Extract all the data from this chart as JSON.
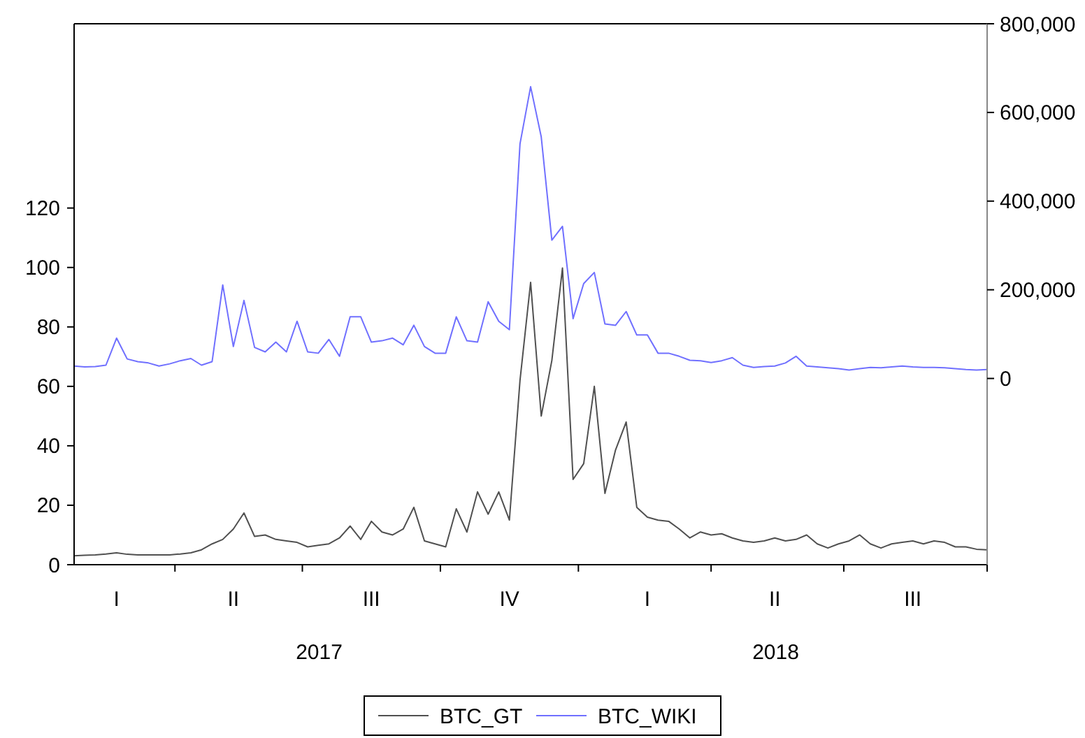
{
  "chart_data": {
    "type": "line",
    "categories": [
      null,
      null,
      null,
      null,
      "I",
      null,
      null,
      null,
      null,
      null,
      null,
      null,
      null,
      null,
      null,
      "II",
      null,
      null,
      null,
      null,
      null,
      null,
      null,
      null,
      null,
      null,
      null,
      null,
      "III",
      null,
      null,
      null,
      null,
      null,
      null,
      null,
      null,
      null,
      null,
      null,
      null,
      "IV",
      null,
      null,
      null,
      null,
      null,
      null,
      null,
      null,
      null,
      null,
      null,
      null,
      "I",
      null,
      null,
      null,
      null,
      null,
      null,
      null,
      null,
      null,
      null,
      null,
      "II",
      null,
      null,
      null,
      null,
      null,
      null,
      null,
      null,
      null,
      null,
      null,
      null,
      "III",
      null,
      null,
      null,
      null,
      null,
      null,
      null
    ],
    "ylim": [
      0,
      182
    ],
    "yticks": [
      0,
      20,
      40,
      60,
      80,
      100,
      120
    ],
    "y2lim": [
      -420000,
      800000
    ],
    "y2ticks": [
      0,
      {
        "value": 200000,
        "label": "200,000"
      },
      {
        "value": 400000,
        "label": "400,000"
      },
      {
        "value": 600000,
        "label": "600,000"
      },
      {
        "value": 800000,
        "label": "800,000"
      }
    ],
    "annotations": [
      "2017",
      "2018"
    ],
    "grid": false,
    "legend": "bottom",
    "line_style": "solid",
    "marker": "none",
    "series": [
      {
        "name": "BTC_GT",
        "color": "#505050",
        "values": [
          3,
          3.2,
          3.3,
          3.6,
          4,
          3.5,
          3.3,
          3.3,
          3.3,
          3.3,
          3.6,
          4,
          5,
          7,
          8.5,
          12,
          17.4,
          9.5,
          10,
          8.5,
          8,
          7.5,
          6,
          6.5,
          7,
          9,
          13,
          8.5,
          14.6,
          11,
          10,
          12,
          19.3,
          8,
          7,
          6,
          18.8,
          11,
          24.5,
          17,
          24.5,
          15,
          62,
          95,
          50,
          68.7,
          99.8,
          28.7,
          34,
          60,
          24,
          38.6,
          48,
          19.3,
          16,
          15,
          14.6,
          12,
          9,
          11,
          10,
          10.4,
          9,
          8,
          7.5,
          8,
          9,
          8,
          8.5,
          10,
          7,
          5.6,
          7,
          8,
          10,
          7,
          5.6,
          7,
          7.5,
          8,
          7,
          8,
          7.5,
          6,
          6,
          5.2,
          5
        ]
      },
      {
        "name": "BTC_WIKI",
        "color": "#7070ff",
        "axis": "y2",
        "values": [
          28000,
          26000,
          27000,
          30000,
          91000,
          44000,
          38000,
          35000,
          28000,
          33000,
          40000,
          45000,
          30000,
          38000,
          211000,
          72000,
          176000,
          70000,
          60000,
          82000,
          60000,
          129000,
          60000,
          57000,
          88000,
          50000,
          139000,
          139000,
          82000,
          85000,
          91000,
          76000,
          120000,
          72000,
          57000,
          57000,
          139000,
          85000,
          82000,
          173000,
          129000,
          110000,
          529000,
          658000,
          545000,
          312000,
          343000,
          135000,
          214000,
          239000,
          123000,
          120000,
          151000,
          98000,
          98000,
          57000,
          57000,
          50000,
          41000,
          40000,
          36000,
          40000,
          47000,
          30000,
          25000,
          27000,
          28000,
          35000,
          50000,
          28000,
          26000,
          24000,
          22000,
          19000,
          22000,
          25000,
          24000,
          26000,
          28000,
          26000,
          25000,
          25000,
          24000,
          22000,
          20000,
          19000,
          20000
        ]
      }
    ]
  }
}
